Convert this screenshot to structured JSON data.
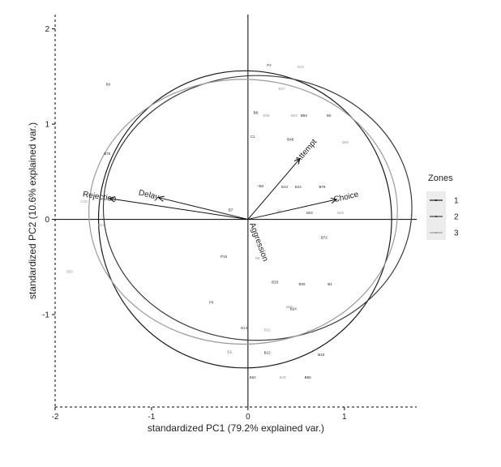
{
  "chart_data": {
    "type": "scatter",
    "subtype": "pca-biplot",
    "xlabel": "standardized PC1 (79.2% explained var.)",
    "ylabel": "standardized PC2 (10.6% explained var.)",
    "xlim": [
      -2.0,
      1.75
    ],
    "ylim": [
      -1.97,
      2.15
    ],
    "xticks": [
      -2,
      -1,
      0,
      1
    ],
    "yticks": [
      -1,
      0,
      1,
      2
    ],
    "grid": false,
    "zero_lines": true,
    "legend": {
      "title": "Zones",
      "placement": "right",
      "entries": [
        "1",
        "2",
        "3"
      ]
    },
    "zone_colors": {
      "1": "#1a1a1a",
      "2": "#3a3a3a",
      "3": "#9a9a9a"
    },
    "series": [
      {
        "name": "1",
        "points": [
          {
            "label": "B76",
            "x": -1.46,
            "y": 0.69
          },
          {
            "label": "B48",
            "x": 0.44,
            "y": 0.84
          },
          {
            "label": "B54",
            "x": 0.58,
            "y": 1.09
          },
          {
            "label": "B76",
            "x": 0.77,
            "y": 0.34
          },
          {
            "label": "B72",
            "x": 0.79,
            "y": -0.19
          },
          {
            "label": "B1",
            "x": 0.85,
            "y": -0.68
          },
          {
            "label": "B8",
            "x": 0.08,
            "y": 1.12
          },
          {
            "label": "C1",
            "x": 0.05,
            "y": 0.87
          },
          {
            "label": "B7",
            "x": -0.18,
            "y": 0.1
          },
          {
            "label": "P15",
            "x": -0.25,
            "y": -0.39
          },
          {
            "label": "B12",
            "x": 0.2,
            "y": -1.4
          },
          {
            "label": "B43",
            "x": 0.76,
            "y": -1.42
          },
          {
            "label": "B33",
            "x": 0.28,
            "y": -0.66
          },
          {
            "label": "B24",
            "x": 0.47,
            "y": -0.94
          },
          {
            "label": "B60",
            "x": 0.62,
            "y": -1.66
          }
        ]
      },
      {
        "name": "2",
        "points": [
          {
            "label": "P2",
            "x": 0.22,
            "y": 1.62
          },
          {
            "label": "B9",
            "x": -1.45,
            "y": 1.42
          },
          {
            "label": "B43",
            "x": 0.38,
            "y": 0.34
          },
          {
            "label": "B6",
            "x": 0.84,
            "y": 1.09
          },
          {
            "label": "B59",
            "x": 0.56,
            "y": -0.68
          },
          {
            "label": "P8",
            "x": -0.38,
            "y": -0.87
          },
          {
            "label": "B14",
            "x": -0.04,
            "y": -1.14
          },
          {
            "label": "B62",
            "x": 0.05,
            "y": -1.66
          },
          {
            "label": "B92",
            "x": 0.64,
            "y": 0.07
          },
          {
            "label": "B3",
            "x": 0.14,
            "y": 0.35
          },
          {
            "label": "B24",
            "x": 0.52,
            "y": 0.34
          },
          {
            "label": "C1",
            "x": -0.19,
            "y": -1.39
          }
        ]
      },
      {
        "name": "3",
        "points": [
          {
            "label": "B31",
            "x": 0.55,
            "y": 1.6
          },
          {
            "label": "B37",
            "x": 0.35,
            "y": 1.37
          },
          {
            "label": "B39",
            "x": 0.19,
            "y": 1.09
          },
          {
            "label": "B63",
            "x": 0.48,
            "y": 1.09
          },
          {
            "label": "C10",
            "x": -1.7,
            "y": 0.19
          },
          {
            "label": "B24",
            "x": -1.52,
            "y": -0.06
          },
          {
            "label": "B59",
            "x": -1.85,
            "y": -0.55
          },
          {
            "label": "C6",
            "x": 0.12,
            "y": 0.35
          },
          {
            "label": "B90",
            "x": 1.01,
            "y": 0.81
          },
          {
            "label": "B1",
            "x": 0.33,
            "y": 0.09
          },
          {
            "label": "B48",
            "x": 0.96,
            "y": 0.07
          },
          {
            "label": "B8",
            "x": 0.1,
            "y": -0.41
          },
          {
            "label": "B50",
            "x": 0.43,
            "y": -0.92
          },
          {
            "label": "B52",
            "x": 0.2,
            "y": -1.16
          },
          {
            "label": "B26",
            "x": 0.65,
            "y": -1.18
          },
          {
            "label": "B48",
            "x": 0.36,
            "y": -1.66
          }
        ]
      }
    ],
    "loadings": [
      {
        "name": "Rejection",
        "x": -1.44,
        "y": 0.22
      },
      {
        "name": "Delay",
        "x": -0.93,
        "y": 0.23
      },
      {
        "name": "Attempt",
        "x": 0.54,
        "y": 0.64
      },
      {
        "name": "Choice",
        "x": 0.92,
        "y": 0.21
      },
      {
        "name": "Aggression",
        "x": 0.0,
        "y": 0.02
      }
    ],
    "ellipses": [
      {
        "zone": "1",
        "cx": -0.03,
        "cy": 0.0,
        "rx": 1.52,
        "ry": 1.56
      },
      {
        "zone": "2",
        "cx": 0.1,
        "cy": 0.12,
        "rx": 1.6,
        "ry": 1.39
      },
      {
        "zone": "3",
        "cx": -0.05,
        "cy": 0.08,
        "rx": 1.6,
        "ry": 1.39
      }
    ]
  }
}
